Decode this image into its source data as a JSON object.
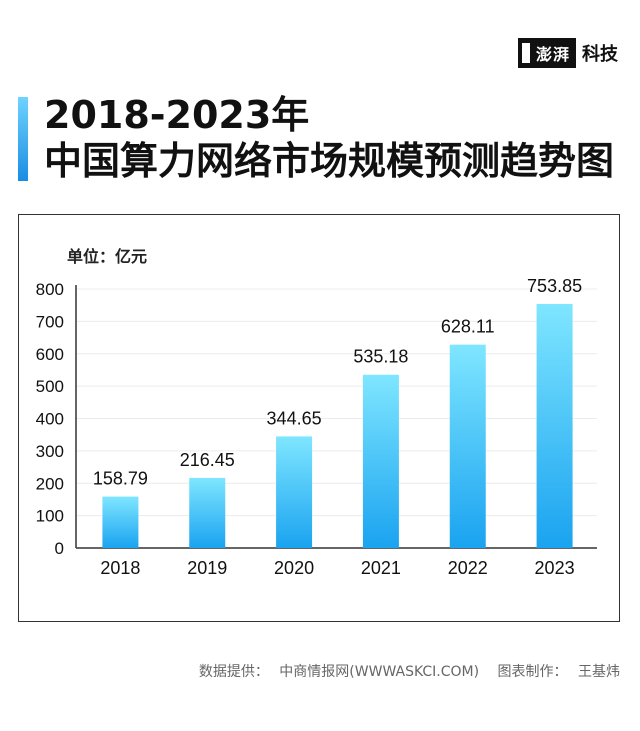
{
  "brand": {
    "logo_text": "澎湃",
    "section": "科技"
  },
  "title": {
    "line1": "2018-2023年",
    "line2": "中国算力网络市场规模预测趋势图"
  },
  "unit_label": "单位：亿元",
  "colors": {
    "bar_top": "#7fe6ff",
    "bar_bottom": "#1aa3f0",
    "accent": "#1a8de3"
  },
  "chart_data": {
    "type": "bar",
    "categories": [
      "2018",
      "2019",
      "2020",
      "2021",
      "2022",
      "2023"
    ],
    "values": [
      158.79,
      216.45,
      344.65,
      535.18,
      628.11,
      753.85
    ],
    "value_labels": [
      "158.79",
      "216.45",
      "344.65",
      "535.18",
      "628.11",
      "753.85"
    ],
    "yticks": [
      "0",
      "100",
      "200",
      "300",
      "400",
      "500",
      "600",
      "700",
      "800"
    ],
    "ylim": [
      0,
      800
    ],
    "grid": true,
    "title": "",
    "xlabel": "",
    "ylabel": ""
  },
  "footer": {
    "source_label": "数据提供：",
    "source": "中商情报网(WWWASKCI.COM)",
    "author_label": "图表制作：",
    "author": "王基炜"
  }
}
